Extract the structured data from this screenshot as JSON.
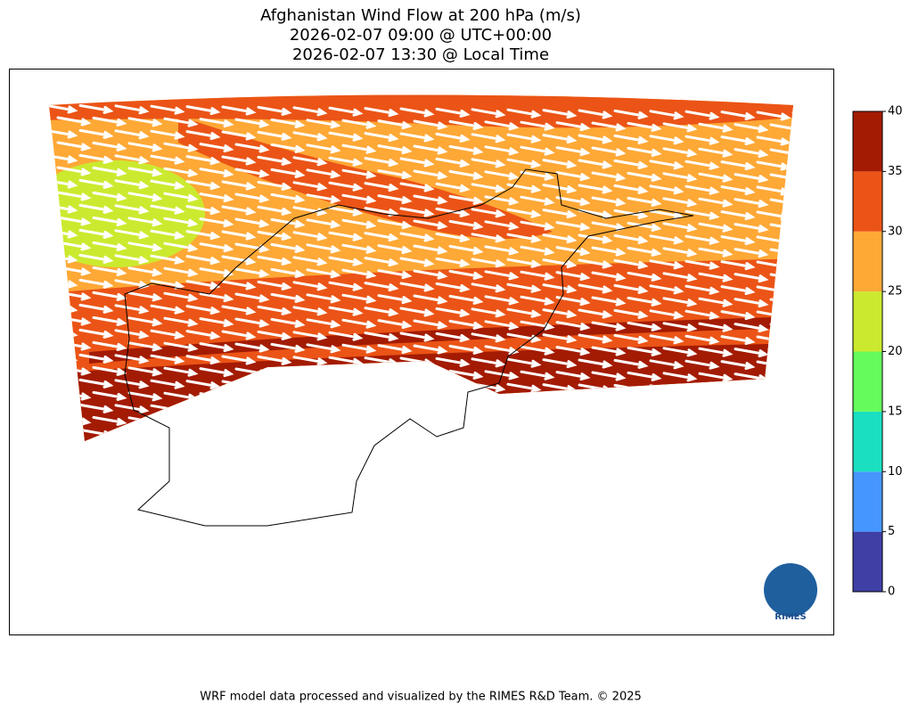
{
  "title": [
    "Afghanistan Wind Flow at 200 hPa (m/s)",
    "2026-02-07 09:00 @ UTC+00:00",
    "2026-02-07 13:30 @ Local Time"
  ],
  "colorbar": {
    "ticks": [
      0,
      5,
      10,
      15,
      20,
      25,
      30,
      35,
      40
    ],
    "colors": [
      "#3f3fa6",
      "#4596fe",
      "#1adfc0",
      "#66fb5c",
      "#cbea2f",
      "#fea836",
      "#eb5416",
      "#a31b02"
    ]
  },
  "logo": "RIMES",
  "footer": "WRF model data processed and visualized by the RIMES R&D Team. © 2025"
}
